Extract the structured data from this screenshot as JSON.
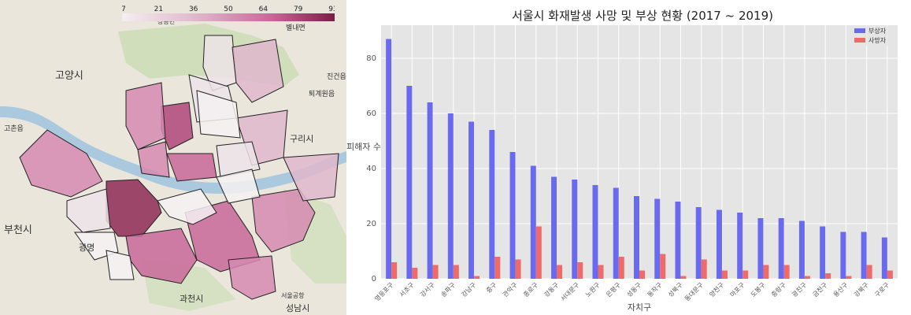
{
  "map": {
    "colorbar_ticks": [
      "7",
      "21",
      "36",
      "50",
      "64",
      "79",
      "93"
    ],
    "place_labels": [
      "고양시",
      "고촌읍",
      "부천시",
      "광명",
      "과천시",
      "성남시",
      "구리시",
      "퇴계원읍",
      "진건읍",
      "별내면",
      "장흥면",
      "서울공항"
    ],
    "district_colors": [
      "#8e2a55",
      "#b0447a",
      "#c9679a",
      "#d68ab1",
      "#e0b7cc",
      "#ece3e8",
      "#f4f1f2"
    ]
  },
  "chart_data": {
    "type": "bar",
    "title": "서울시 화재발생 사망 및 부상 현황 (2017 ~ 2019)",
    "xlabel": "자치구",
    "ylabel": "피해자 수",
    "ylim": [
      0,
      92
    ],
    "yticks": [
      0,
      20,
      40,
      60,
      80
    ],
    "grid": true,
    "legend_position": "top-right",
    "categories": [
      "영등포구",
      "서초구",
      "강서구",
      "송파구",
      "강남구",
      "중구",
      "관악구",
      "종로구",
      "강동구",
      "서대문구",
      "노원구",
      "은평구",
      "성동구",
      "동작구",
      "성북구",
      "동대문구",
      "양천구",
      "마포구",
      "도봉구",
      "중랑구",
      "광진구",
      "금천구",
      "용산구",
      "강북구",
      "구로구"
    ],
    "series": [
      {
        "name": "부상자",
        "color": "#6a6aee",
        "values": [
          87,
          70,
          64,
          60,
          57,
          54,
          46,
          41,
          37,
          36,
          34,
          33,
          30,
          29,
          28,
          26,
          25,
          24,
          22,
          22,
          21,
          19,
          17,
          17,
          15
        ]
      },
      {
        "name": "사망자",
        "color": "#ee6b6b",
        "values": [
          6,
          4,
          5,
          5,
          1,
          8,
          7,
          19,
          5,
          6,
          5,
          8,
          3,
          9,
          1,
          7,
          3,
          3,
          5,
          5,
          1,
          2,
          1,
          5,
          3
        ]
      }
    ]
  }
}
